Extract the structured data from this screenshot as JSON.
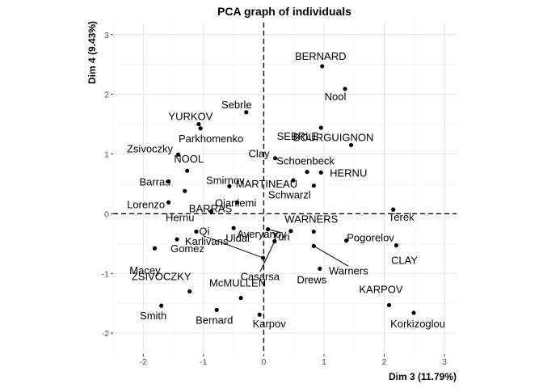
{
  "chart_data": {
    "type": "scatter",
    "title": "PCA graph of individuals",
    "xlabel": "Dim 3 (11.79%)",
    "ylabel": "Dim 4 (9.43%)",
    "xlim": [
      -2.5,
      3.2
    ],
    "ylim": [
      -2.35,
      3.2
    ],
    "x_ticks": [
      -2,
      -1,
      0,
      1,
      2,
      3
    ],
    "y_ticks": [
      -2,
      -1,
      0,
      1,
      2,
      3
    ],
    "x_tick_labels": [
      "-2",
      "-1",
      "0",
      "1",
      "2",
      "3"
    ],
    "y_tick_labels": [
      "-2",
      "-1",
      "0",
      "1",
      "2",
      "3"
    ],
    "grid": true,
    "reference_lines": {
      "x": 0,
      "y": 0,
      "style": "dashed"
    },
    "point_color": "#000000",
    "points": [
      {
        "label": "BERNARD",
        "x": 0.97,
        "y": 2.47
      },
      {
        "label": "Nool",
        "x": 1.35,
        "y": 2.09
      },
      {
        "label": "Sebrle",
        "x": -0.29,
        "y": 1.7
      },
      {
        "label": "YURKOV",
        "x": -1.08,
        "y": 1.5
      },
      {
        "label": "Parkhomenko",
        "x": -1.05,
        "y": 1.43
      },
      {
        "label": "SEBRLE",
        "x": 0.95,
        "y": 1.44
      },
      {
        "label": "BOURGUIGNON",
        "x": 1.45,
        "y": 1.15
      },
      {
        "label": "Zsivoczky",
        "x": -1.42,
        "y": 0.99
      },
      {
        "label": "Clay",
        "x": 0.19,
        "y": 0.93
      },
      {
        "label": "NOOL",
        "x": -1.27,
        "y": 0.72
      },
      {
        "label": "Schoenbeck",
        "x": 0.72,
        "y": 0.7
      },
      {
        "label": "HERNU",
        "x": 0.95,
        "y": 0.69
      },
      {
        "label": "Barras",
        "x": -1.58,
        "y": 0.54
      },
      {
        "label": "MARTINEAU",
        "x": 0.49,
        "y": 0.56
      },
      {
        "label": "Smirnov",
        "x": -0.57,
        "y": 0.46
      },
      {
        "label": "Schwarzl",
        "x": 0.83,
        "y": 0.47
      },
      {
        "label": "Ojaniemi",
        "x": -0.44,
        "y": 0.19
      },
      {
        "label": "Lorenzo",
        "x": -1.58,
        "y": 0.19
      },
      {
        "label": "Hernu",
        "x": -1.31,
        "y": 0.38
      },
      {
        "label": "BARRAS",
        "x": -0.87,
        "y": 0.04
      },
      {
        "label": "Terek",
        "x": 2.15,
        "y": 0.07
      },
      {
        "label": "Turi",
        "x": 0.07,
        "y": -0.26
      },
      {
        "label": "Uldal",
        "x": -0.5,
        "y": -0.24
      },
      {
        "label": "Qi",
        "x": -1.12,
        "y": -0.3
      },
      {
        "label": "WARNERS",
        "x": 0.83,
        "y": -0.3
      },
      {
        "label": "Pogorelov",
        "x": 1.37,
        "y": -0.45
      },
      {
        "label": "Averyanov",
        "x": 0.45,
        "y": -0.29
      },
      {
        "label": "Gomez",
        "x": -1.44,
        "y": -0.43
      },
      {
        "label": "Macey",
        "x": -1.81,
        "y": -0.58
      },
      {
        "label": "CLAY",
        "x": 2.2,
        "y": -0.53
      },
      {
        "label": "Warners",
        "x": 0.83,
        "y": -0.54
      },
      {
        "label": "Casarsa",
        "x": 0.18,
        "y": -0.46
      },
      {
        "label": "Karlivans",
        "x": -0.01,
        "y": -0.74
      },
      {
        "label": "Drews",
        "x": 0.93,
        "y": -0.92
      },
      {
        "label": "ZSIVOCZKY",
        "x": -1.23,
        "y": -1.3
      },
      {
        "label": "McMULLEN",
        "x": -0.38,
        "y": -1.41
      },
      {
        "label": "KARPOV",
        "x": 2.08,
        "y": -1.53
      },
      {
        "label": "Smith",
        "x": -1.7,
        "y": -1.54
      },
      {
        "label": "Bernard",
        "x": -0.78,
        "y": -1.61
      },
      {
        "label": "Korkizoglou",
        "x": 2.49,
        "y": -1.66
      },
      {
        "label": "Karpov",
        "x": -0.07,
        "y": -1.69
      }
    ]
  }
}
